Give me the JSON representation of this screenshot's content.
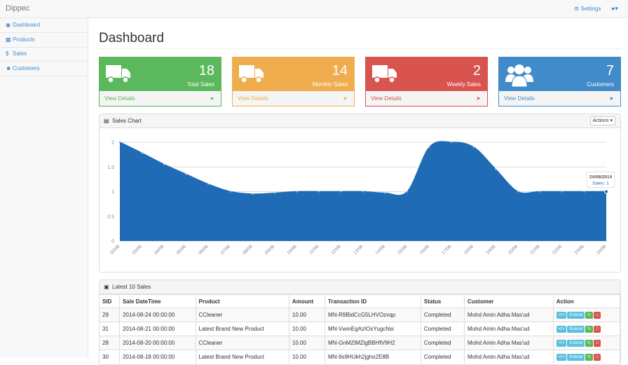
{
  "header": {
    "brand": "Dippec",
    "settings": "Settings"
  },
  "sidebar": {
    "items": [
      "Dashboard",
      "Products",
      "Sales",
      "Customers"
    ]
  },
  "page_title": "Dashboard",
  "stats": [
    {
      "value": 18,
      "label": "Total Sales",
      "link": "View Details",
      "color": "#5cb85c"
    },
    {
      "value": 14,
      "label": "Monthly Sales",
      "link": "View Details",
      "color": "#f0ad4e"
    },
    {
      "value": 2,
      "label": "Weekly Sales",
      "link": "View Details",
      "color": "#d9534f"
    },
    {
      "value": 7,
      "label": "Customers",
      "link": "View Details",
      "color": "#428bca"
    }
  ],
  "chart_panel": {
    "title": "Sales Chart",
    "actions": "Actions"
  },
  "chart_data": {
    "type": "area",
    "categories": [
      "02/08",
      "03/08",
      "04/08",
      "05/08",
      "06/08",
      "07/08",
      "08/08",
      "09/08",
      "10/08",
      "11/08",
      "12/08",
      "13/08",
      "14/08",
      "15/08",
      "16/08",
      "17/08",
      "18/08",
      "19/08",
      "20/08",
      "21/08",
      "22/08",
      "23/08",
      "24/08"
    ],
    "series": [
      {
        "name": "Sales",
        "color": "#1f6bb5",
        "values": [
          2,
          1.78,
          1.55,
          1.35,
          1.15,
          1,
          0.95,
          0.97,
          1,
          1,
          1,
          1,
          0.97,
          1,
          1.9,
          2,
          1.9,
          1.45,
          1,
          1,
          1,
          1,
          1
        ]
      }
    ],
    "ylim": [
      0,
      2
    ],
    "yticks": [
      0,
      0.5,
      1,
      1.5,
      2
    ],
    "grid": true,
    "hover_label": {
      "date": "24/08/2014",
      "series_label": "Sales:",
      "value": 1
    }
  },
  "table": {
    "title": "Latest 10 Sales",
    "columns": [
      "SID",
      "Sale DateTime",
      "Product",
      "Amount",
      "Transaction ID",
      "Status",
      "Customer",
      "Action"
    ],
    "rows": [
      [
        "29",
        "2014-08-24 00:00:00",
        "CCleaner",
        "10.00",
        "MN-R9BidCcG5LHVOzvqp",
        "Completed",
        "Mohd Amin Adha Mas'ud"
      ],
      [
        "31",
        "2014-08-21 00:00:00",
        "Latest Brand New Product",
        "10.00",
        "MN-VwmEgAzIOsYugcNsi",
        "Completed",
        "Mohd Amin Adha Mas'ud"
      ],
      [
        "28",
        "2014-08-20 00:00:00",
        "CCleaner",
        "10.00",
        "MN-GnMZlMZlgBBHfV9H2",
        "Completed",
        "Mohd Amin Adha Mas'ud"
      ],
      [
        "30",
        "2014-08-18 00:00:00",
        "Latest Brand New Product",
        "10.00",
        "MN-9s9HUkh2jgho2E8B",
        "Completed",
        "Mohd Amin Adha Mas'ud"
      ]
    ],
    "action_button": "Extend"
  }
}
